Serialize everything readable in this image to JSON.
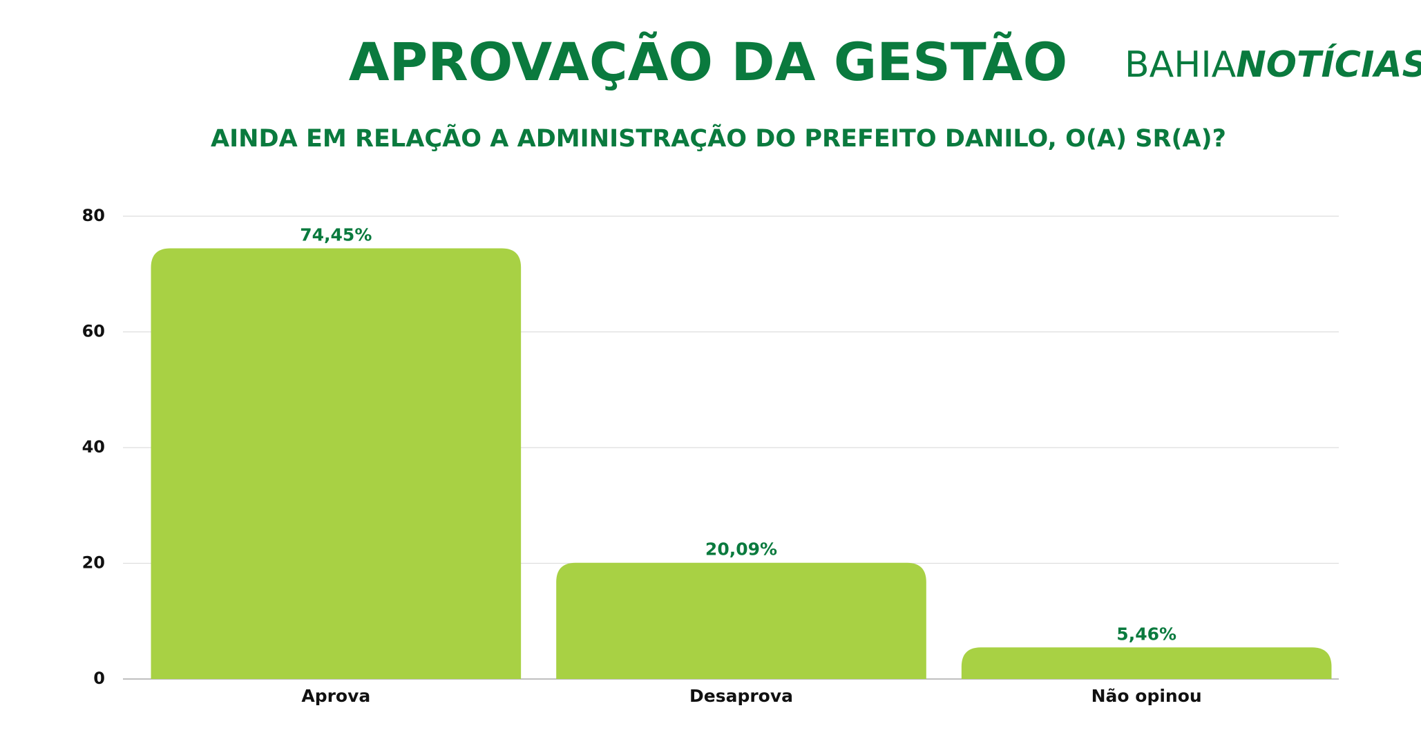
{
  "chart_data": {
    "type": "bar",
    "title": "APROVAÇÃO DA GESTÃO",
    "subtitle": "AINDA EM RELAÇÃO A ADMINISTRAÇÃO DO PREFEITO DANILO, O(A) SR(A)?",
    "categories": [
      "Aprova",
      "Desaprova",
      "Não opinou"
    ],
    "values": [
      74.45,
      20.09,
      5.46
    ],
    "value_labels": [
      "74,45%",
      "20,09%",
      "5,46%"
    ],
    "color": "#a8d144",
    "ylim": [
      0,
      80
    ],
    "yticks": [
      0,
      20,
      40,
      60,
      80
    ],
    "grid": true
  },
  "logo": {
    "light": "BAHIA",
    "bold": "NOTÍCIAS"
  }
}
